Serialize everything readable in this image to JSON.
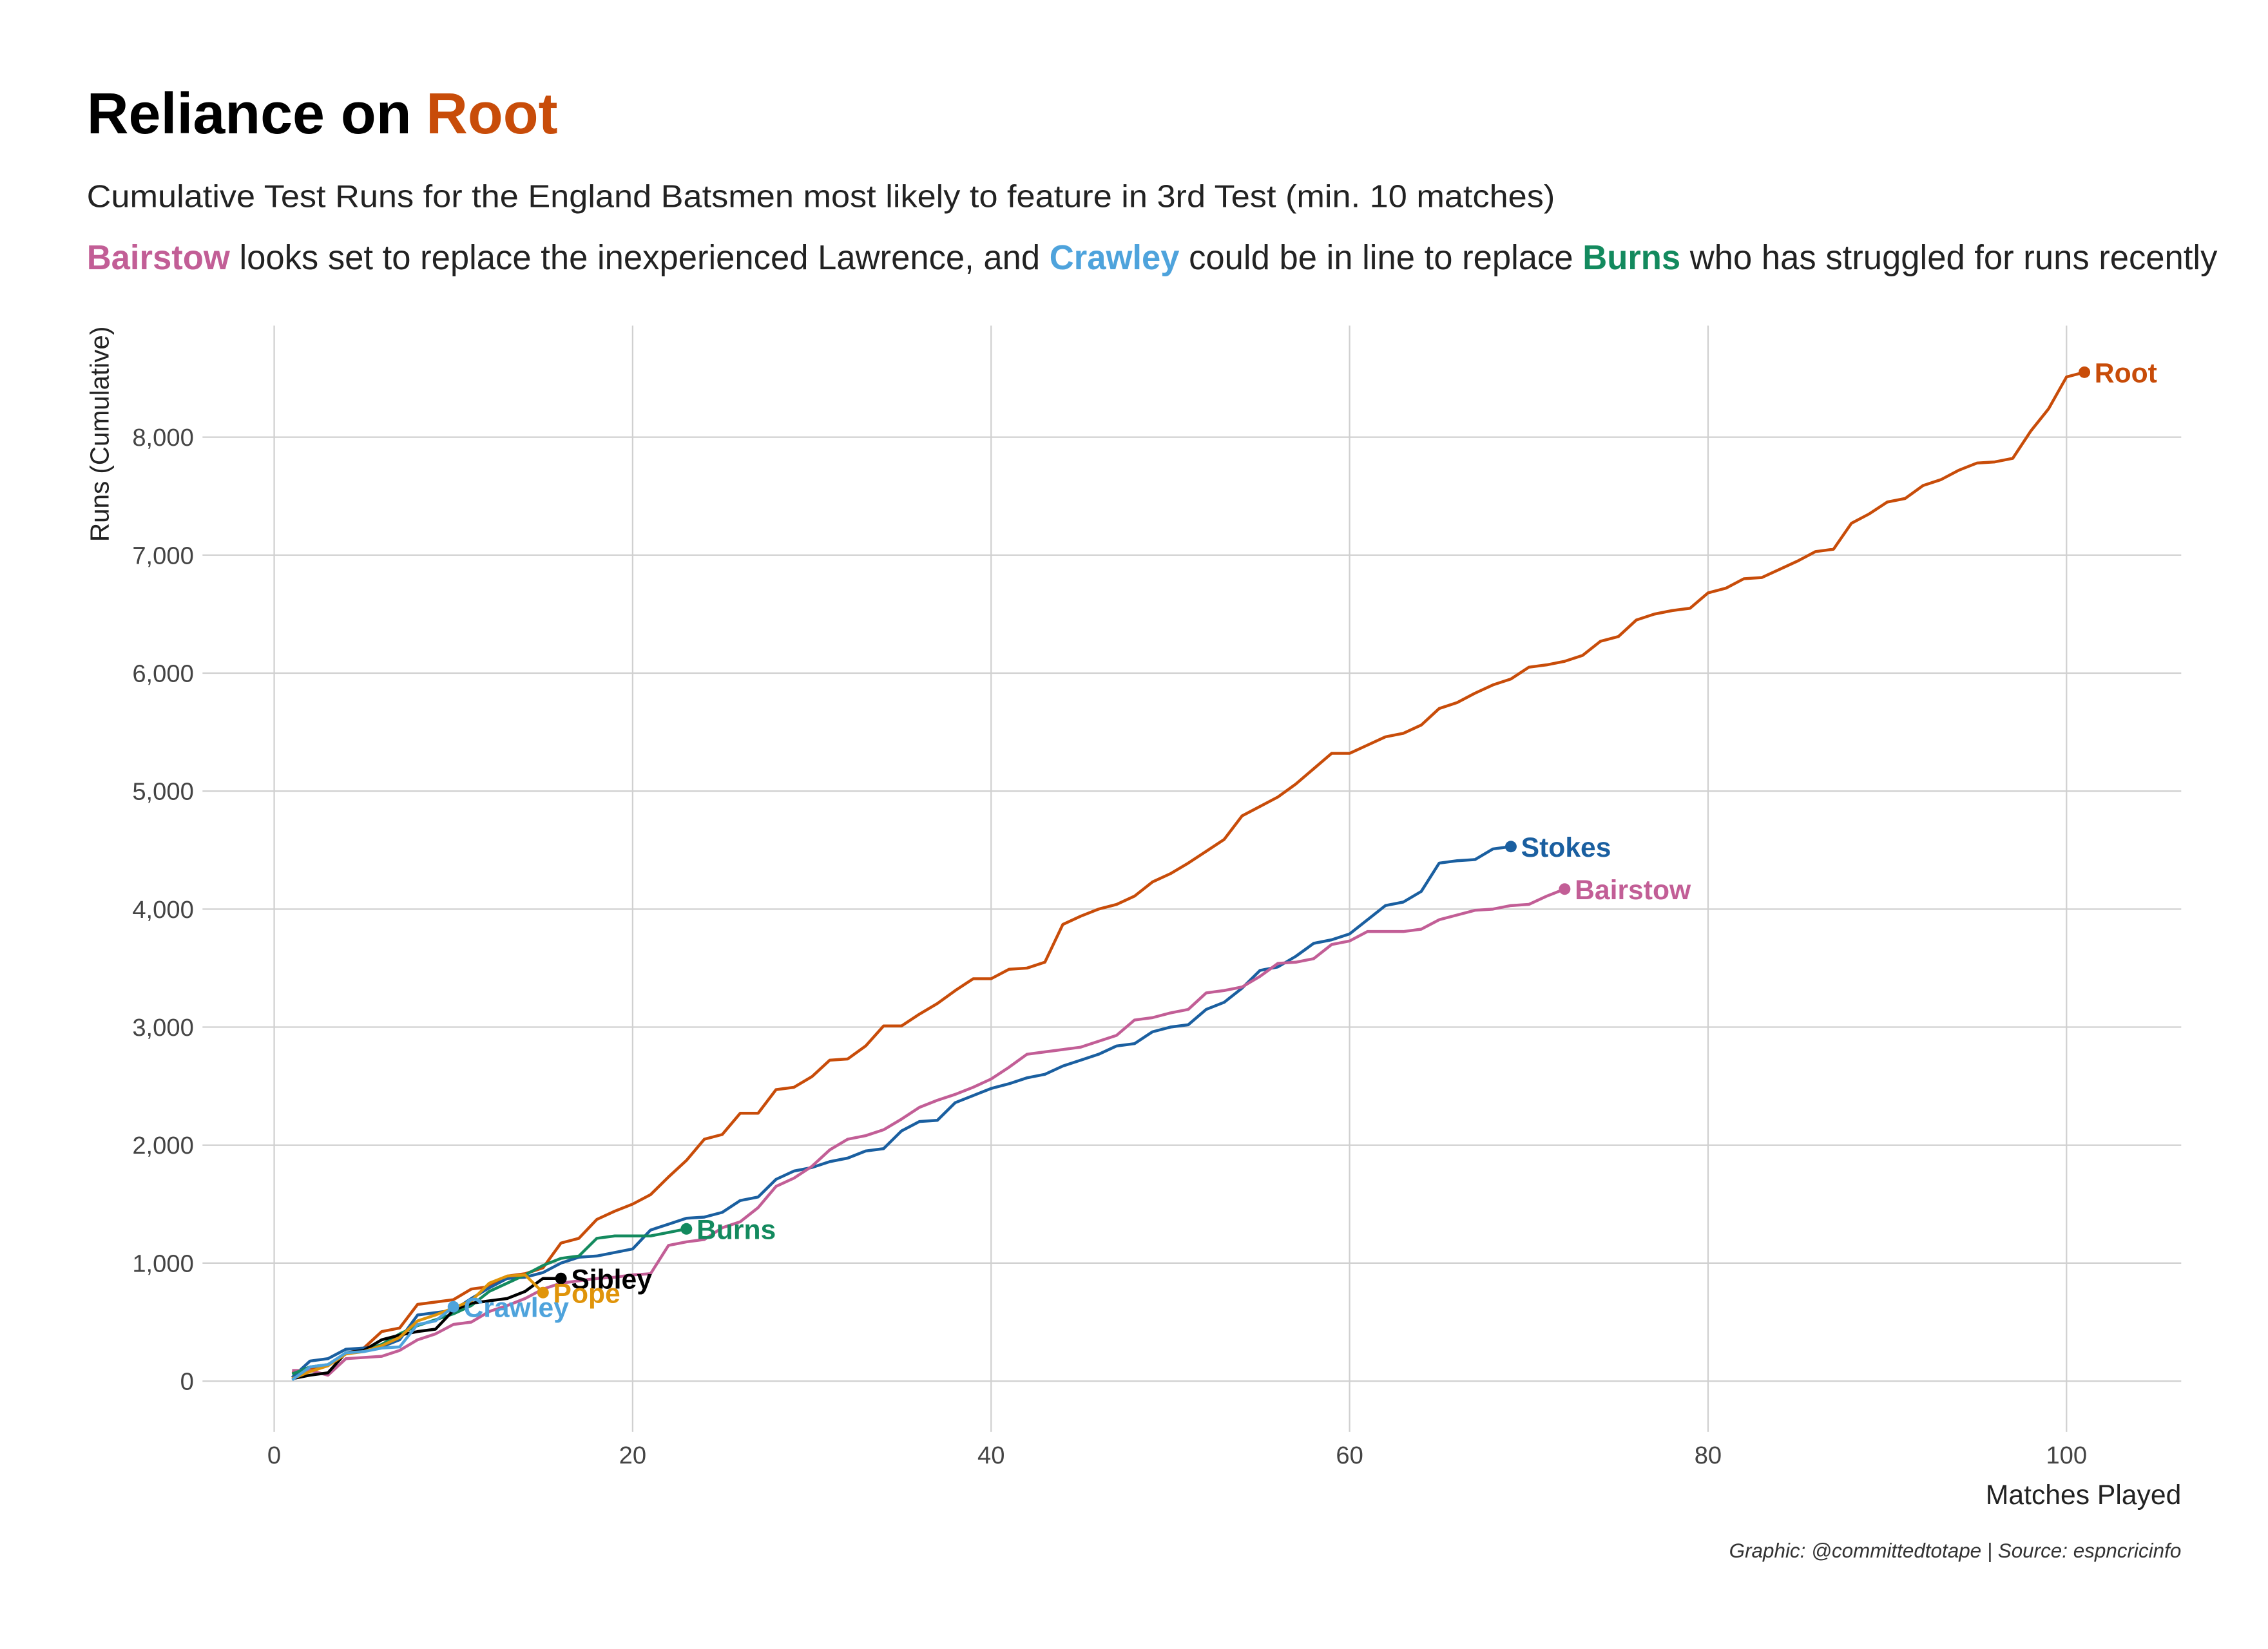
{
  "chart_data": {
    "type": "line",
    "title": "Reliance on",
    "title_highlight": {
      "text": "Root",
      "color": "#c84c09"
    },
    "subtitle": "Cumulative Test Runs for the England Batsmen most likely to feature in 3rd Test (min. 10 matches)",
    "subtitle_2": [
      {
        "text": "Bairstow",
        "color": "#c25e96"
      },
      {
        "text": " looks set to replace the inexperienced Lawrence, and "
      },
      {
        "text": "Crawley",
        "color": "#4ea3dc"
      },
      {
        "text": " could be in line to replace "
      },
      {
        "text": "Burns",
        "color": "#138a5e"
      },
      {
        "text": " who has struggled for runs recently"
      }
    ],
    "x_label": "Matches Played",
    "y_label": "Runs (Cumulative)",
    "caption": "Graphic: @committedtotape | Source: espncricinfo",
    "xlim": [
      -4,
      106.4
    ],
    "ylim": [
      -430,
      8945
    ],
    "xticks": [
      0,
      20,
      40,
      60,
      80,
      100
    ],
    "yticks": [
      0,
      {
        "value": 1000,
        "label": "1,000"
      },
      {
        "value": 2000,
        "label": "2,000"
      },
      {
        "value": 3000,
        "label": "3,000"
      },
      {
        "value": 4000,
        "label": "4,000"
      },
      {
        "value": 5000,
        "label": "5,000"
      },
      {
        "value": 6000,
        "label": "6,000"
      },
      {
        "value": 7000,
        "label": "7,000"
      },
      {
        "value": 8000,
        "label": "8,000"
      }
    ],
    "grid": true,
    "series": [
      {
        "name": "Root",
        "color": "#c84c09",
        "x": [
          1,
          2,
          3,
          4,
          5,
          6,
          7,
          8,
          9,
          10,
          11,
          12,
          13,
          14,
          15,
          16,
          17,
          18,
          19,
          20,
          21,
          22,
          23,
          24,
          25,
          26,
          27,
          28,
          29,
          30,
          31,
          32,
          33,
          34,
          35,
          36,
          37,
          38,
          39,
          40,
          41,
          42,
          43,
          44,
          45,
          46,
          47,
          48,
          49,
          50,
          51,
          52,
          53,
          54,
          55,
          56,
          57,
          58,
          59,
          60,
          61,
          62,
          63,
          64,
          65,
          66,
          67,
          68,
          69,
          70,
          71,
          72,
          73,
          74,
          75,
          76,
          77,
          78,
          79,
          80,
          81,
          82,
          83,
          84,
          85,
          86,
          87,
          88,
          89,
          90,
          91,
          92,
          93,
          94,
          95,
          96,
          97,
          98,
          99,
          100,
          101
        ],
        "values": [
          70,
          100,
          130,
          230,
          280,
          420,
          450,
          650,
          670,
          690,
          780,
          800,
          890,
          910,
          960,
          1170,
          1210,
          1370,
          1440,
          1500,
          1580,
          1730,
          1870,
          2050,
          2090,
          2270,
          2270,
          2470,
          2490,
          2580,
          2720,
          2730,
          2840,
          3010,
          3010,
          3110,
          3200,
          3310,
          3410,
          3410,
          3490,
          3500,
          3550,
          3870,
          3940,
          4000,
          4040,
          4110,
          4230,
          4300,
          4390,
          4490,
          4590,
          4790,
          4870,
          4950,
          5060,
          5190,
          5320,
          5320,
          5390,
          5460,
          5490,
          5560,
          5700,
          5750,
          5830,
          5900,
          5950,
          6050,
          6070,
          6100,
          6150,
          6270,
          6310,
          6450,
          6500,
          6530,
          6550,
          6680,
          6720,
          6800,
          6810,
          6880,
          6950,
          7030,
          7050,
          7270,
          7350,
          7450,
          7480,
          7590,
          7640,
          7720,
          7780,
          7790,
          7820,
          8050,
          8240,
          8510,
          8550
        ]
      },
      {
        "name": "Stokes",
        "color": "#1a5fa0",
        "x": [
          1,
          2,
          3,
          4,
          5,
          6,
          7,
          8,
          9,
          10,
          11,
          12,
          13,
          14,
          15,
          16,
          17,
          18,
          19,
          20,
          21,
          22,
          23,
          24,
          25,
          26,
          27,
          28,
          29,
          30,
          31,
          32,
          33,
          34,
          35,
          36,
          37,
          38,
          39,
          40,
          41,
          42,
          43,
          44,
          45,
          46,
          47,
          48,
          49,
          50,
          51,
          52,
          53,
          54,
          55,
          56,
          57,
          58,
          59,
          60,
          61,
          62,
          63,
          64,
          65,
          66,
          67,
          68,
          69
        ],
        "values": [
          30,
          170,
          190,
          270,
          280,
          290,
          350,
          560,
          580,
          600,
          700,
          790,
          870,
          880,
          920,
          1000,
          1050,
          1060,
          1090,
          1120,
          1280,
          1330,
          1380,
          1390,
          1430,
          1530,
          1560,
          1710,
          1780,
          1810,
          1860,
          1890,
          1950,
          1970,
          2120,
          2200,
          2210,
          2360,
          2420,
          2480,
          2520,
          2570,
          2600,
          2670,
          2720,
          2770,
          2840,
          2860,
          2960,
          3000,
          3020,
          3150,
          3210,
          3330,
          3480,
          3510,
          3600,
          3710,
          3740,
          3790,
          3910,
          4030,
          4060,
          4150,
          4390,
          4410,
          4420,
          4510,
          4530
        ]
      },
      {
        "name": "Bairstow",
        "color": "#c25e96",
        "x": [
          1,
          2,
          3,
          4,
          5,
          6,
          7,
          8,
          9,
          10,
          11,
          12,
          13,
          14,
          15,
          16,
          17,
          18,
          19,
          20,
          21,
          22,
          23,
          24,
          25,
          26,
          27,
          28,
          29,
          30,
          31,
          32,
          33,
          34,
          35,
          36,
          37,
          38,
          39,
          40,
          41,
          42,
          43,
          44,
          45,
          46,
          47,
          48,
          49,
          50,
          51,
          52,
          53,
          54,
          55,
          56,
          57,
          58,
          59,
          60,
          61,
          62,
          63,
          64,
          65,
          66,
          67,
          68,
          69,
          70,
          71,
          72
        ],
        "values": [
          90,
          90,
          50,
          190,
          200,
          210,
          260,
          350,
          400,
          480,
          500,
          590,
          640,
          700,
          780,
          830,
          850,
          870,
          880,
          900,
          910,
          1150,
          1180,
          1200,
          1300,
          1350,
          1470,
          1650,
          1720,
          1820,
          1960,
          2050,
          2080,
          2130,
          2220,
          2320,
          2380,
          2430,
          2490,
          2560,
          2660,
          2770,
          2790,
          2810,
          2830,
          2880,
          2930,
          3060,
          3080,
          3120,
          3150,
          3290,
          3310,
          3340,
          3430,
          3540,
          3550,
          3580,
          3700,
          3730,
          3810,
          3810,
          3810,
          3830,
          3910,
          3950,
          3990,
          4000,
          4030,
          4040,
          4110,
          4170
        ]
      },
      {
        "name": "Burns",
        "color": "#138a5e",
        "x": [
          1,
          2,
          3,
          4,
          5,
          6,
          7,
          8,
          9,
          10,
          11,
          12,
          13,
          14,
          15,
          16,
          17,
          18,
          19,
          20,
          21,
          22,
          23
        ],
        "values": [
          60,
          120,
          140,
          230,
          260,
          310,
          400,
          470,
          520,
          570,
          640,
          760,
          830,
          900,
          980,
          1040,
          1060,
          1210,
          1230,
          1230,
          1230,
          1260,
          1290
        ]
      },
      {
        "name": "Sibley",
        "color": "#000000",
        "x": [
          1,
          2,
          3,
          4,
          5,
          6,
          7,
          8,
          9,
          10,
          11,
          12,
          13,
          14,
          15,
          16
        ],
        "values": [
          20,
          50,
          70,
          240,
          260,
          350,
          390,
          420,
          440,
          600,
          660,
          680,
          700,
          760,
          870,
          870
        ]
      },
      {
        "name": "Pope",
        "color": "#e0940a",
        "x": [
          1,
          2,
          3,
          4,
          5,
          6,
          7,
          8,
          9,
          10,
          11,
          12,
          13,
          14,
          15
        ],
        "values": [
          20,
          80,
          130,
          230,
          250,
          300,
          370,
          510,
          560,
          620,
          680,
          830,
          890,
          900,
          750
        ]
      },
      {
        "name": "Crawley",
        "color": "#4ea3dc",
        "x": [
          1,
          2,
          3,
          4,
          5,
          6,
          7,
          8,
          9,
          10
        ],
        "values": [
          10,
          120,
          140,
          240,
          250,
          280,
          290,
          480,
          510,
          630
        ]
      }
    ]
  }
}
